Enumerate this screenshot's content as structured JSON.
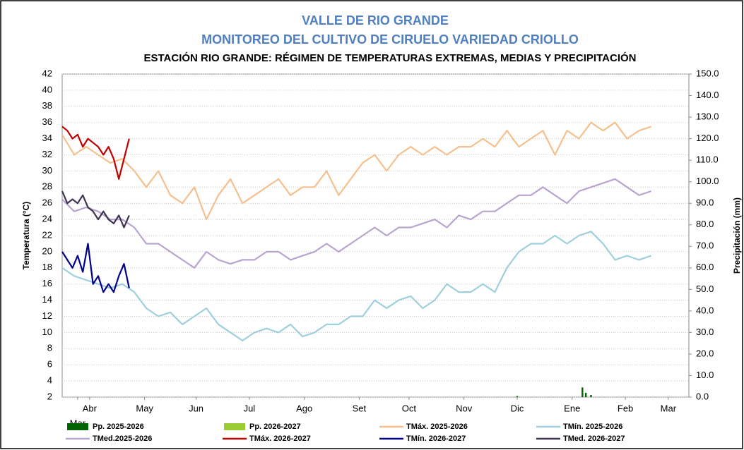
{
  "chart_data": {
    "type": "line",
    "title": "VALLE DE RIO GRANDE",
    "subtitle": "MONITOREO DEL CULTIVO DE CIRUELO VARIEDAD CRIOLLO",
    "caption": "ESTACIÓN RIO GRANDE: RÉGIMEN DE TEMPERATURAS EXTREMAS, MEDIAS Y PRECIPITACIÓN",
    "y_label": "Temperatura (°C)",
    "y2_label": "Precipitación (mm)",
    "xlim": [
      0,
      365
    ],
    "xticks": [
      {
        "value": 9,
        "label": "Mar"
      },
      {
        "value": 16,
        "label": "Abr"
      },
      {
        "value": 48,
        "label": "May"
      },
      {
        "value": 78,
        "label": "Jun"
      },
      {
        "value": 109,
        "label": "Jul"
      },
      {
        "value": 141,
        "label": "Ago"
      },
      {
        "value": 173,
        "label": "Set"
      },
      {
        "value": 202,
        "label": "Oct"
      },
      {
        "value": 234,
        "label": "Nov"
      },
      {
        "value": 265,
        "label": "Dic"
      },
      {
        "value": 297,
        "label": "Ene"
      },
      {
        "value": 328,
        "label": "Feb"
      },
      {
        "value": 353,
        "label": "Mar"
      }
    ],
    "ylim": [
      2,
      42
    ],
    "yticks": [
      2,
      4,
      6,
      8,
      10,
      12,
      14,
      16,
      18,
      20,
      22,
      24,
      26,
      28,
      30,
      32,
      34,
      36,
      38,
      40,
      42
    ],
    "y2lim": [
      0,
      150
    ],
    "y2ticks": [
      {
        "value": 0,
        "label": "0.0"
      },
      {
        "value": 10,
        "label": "10.0"
      },
      {
        "value": 20,
        "label": "20.0"
      },
      {
        "value": 30,
        "label": "30.0"
      },
      {
        "value": 40,
        "label": "40.0"
      },
      {
        "value": 50,
        "label": "50.0"
      },
      {
        "value": 60,
        "label": "60.0"
      },
      {
        "value": 70,
        "label": "70.0"
      },
      {
        "value": 80,
        "label": "80.0"
      },
      {
        "value": 90,
        "label": "90.0"
      },
      {
        "value": 100,
        "label": "100.0"
      },
      {
        "value": 110,
        "label": "110.0"
      },
      {
        "value": 120,
        "label": "120.0"
      },
      {
        "value": 130,
        "label": "130.0"
      },
      {
        "value": 140,
        "label": "140.0"
      },
      {
        "value": 150,
        "label": "150.0"
      }
    ],
    "grid": true,
    "series": [
      {
        "name": "Pp. 2025-2026",
        "type": "bar",
        "axis": "y2",
        "color": "#006400",
        "x": [
          265,
          303,
          305,
          308
        ],
        "values": [
          0.5,
          4.5,
          2,
          1
        ]
      },
      {
        "name": "Pp. 2026-2027",
        "type": "bar",
        "axis": "y2",
        "color": "#9acd32",
        "x": [],
        "values": []
      },
      {
        "name": "TMáx. 2025-2026",
        "color": "#f5c08e",
        "x": [
          0,
          7,
          14,
          21,
          28,
          35,
          42,
          49,
          56,
          63,
          70,
          77,
          84,
          91,
          98,
          105,
          112,
          119,
          126,
          133,
          140,
          147,
          154,
          161,
          168,
          175,
          182,
          189,
          196,
          203,
          210,
          217,
          224,
          231,
          238,
          245,
          252,
          259,
          266,
          273,
          280,
          287,
          294,
          301,
          308,
          315,
          322,
          329,
          336,
          343
        ],
        "values": [
          34.5,
          32,
          33,
          32,
          31,
          31.5,
          30,
          28,
          30,
          27,
          26,
          28,
          24,
          27,
          29,
          26,
          27,
          28,
          29,
          27,
          28,
          28,
          30,
          27,
          29,
          31,
          32,
          30,
          32,
          33,
          32,
          33,
          32,
          33,
          33,
          34,
          33,
          35,
          33,
          34,
          35,
          32,
          35,
          34,
          36,
          35,
          36,
          34,
          35,
          35.5
        ]
      },
      {
        "name": "TMín. 2025-2026",
        "color": "#9ecfdc",
        "x": [
          0,
          7,
          14,
          21,
          28,
          35,
          42,
          49,
          56,
          63,
          70,
          77,
          84,
          91,
          98,
          105,
          112,
          119,
          126,
          133,
          140,
          147,
          154,
          161,
          168,
          175,
          182,
          189,
          196,
          203,
          210,
          217,
          224,
          231,
          238,
          245,
          252,
          259,
          266,
          273,
          280,
          287,
          294,
          301,
          308,
          315,
          322,
          329,
          336,
          343
        ],
        "values": [
          18,
          17,
          16.5,
          16,
          15.5,
          16,
          15,
          13,
          12,
          12.5,
          11,
          12,
          13,
          11,
          10,
          9,
          10,
          10.5,
          10,
          11,
          9.5,
          10,
          11,
          11,
          12,
          12,
          14,
          13,
          14,
          14.5,
          13,
          14,
          16,
          15,
          15,
          16,
          15,
          18,
          20,
          21,
          21,
          22,
          21,
          22,
          22.5,
          21,
          19,
          19.5,
          19,
          19.5
        ]
      },
      {
        "name": "TMed.2025-2026",
        "color": "#b9a3cf",
        "x": [
          0,
          7,
          14,
          21,
          28,
          35,
          42,
          49,
          56,
          63,
          70,
          77,
          84,
          91,
          98,
          105,
          112,
          119,
          126,
          133,
          140,
          147,
          154,
          161,
          168,
          175,
          182,
          189,
          196,
          203,
          210,
          217,
          224,
          231,
          238,
          245,
          252,
          259,
          266,
          273,
          280,
          287,
          294,
          301,
          308,
          315,
          322,
          329,
          336,
          343
        ],
        "values": [
          26.5,
          25,
          25.5,
          25,
          24,
          24,
          23,
          21,
          21,
          20,
          19,
          18,
          20,
          19,
          18.5,
          19,
          19,
          20,
          20,
          19,
          19.5,
          20,
          21,
          20,
          21,
          22,
          23,
          22,
          23,
          23,
          23.5,
          24,
          23,
          24.5,
          24,
          25,
          25,
          26,
          27,
          27,
          28,
          27,
          26,
          27.5,
          28,
          28.5,
          29,
          28,
          27,
          27.5
        ]
      },
      {
        "name": "TMáx. 2026-2027",
        "color": "#c00000",
        "x": [
          0,
          3,
          6,
          9,
          12,
          15,
          18,
          21,
          24,
          27,
          30,
          33,
          36,
          39
        ],
        "values": [
          35.5,
          35,
          34,
          34.5,
          33,
          34,
          33.5,
          33,
          32,
          33,
          31.5,
          29,
          31.5,
          34
        ]
      },
      {
        "name": "TMín. 2026-2027",
        "color": "#00008b",
        "x": [
          0,
          3,
          6,
          9,
          12,
          15,
          18,
          21,
          24,
          27,
          30,
          33,
          36,
          39
        ],
        "values": [
          20,
          19,
          18,
          19.5,
          17.5,
          21,
          16,
          17,
          15,
          16,
          15,
          17,
          18.5,
          15.5
        ]
      },
      {
        "name": "TMed. 2026-2027",
        "color": "#3f3151",
        "x": [
          0,
          3,
          6,
          9,
          12,
          15,
          18,
          21,
          24,
          27,
          30,
          33,
          36,
          39
        ],
        "values": [
          27.5,
          26,
          26.5,
          26,
          27,
          25.5,
          25,
          24,
          25,
          24,
          23.5,
          24.5,
          23,
          24.5
        ]
      }
    ]
  }
}
